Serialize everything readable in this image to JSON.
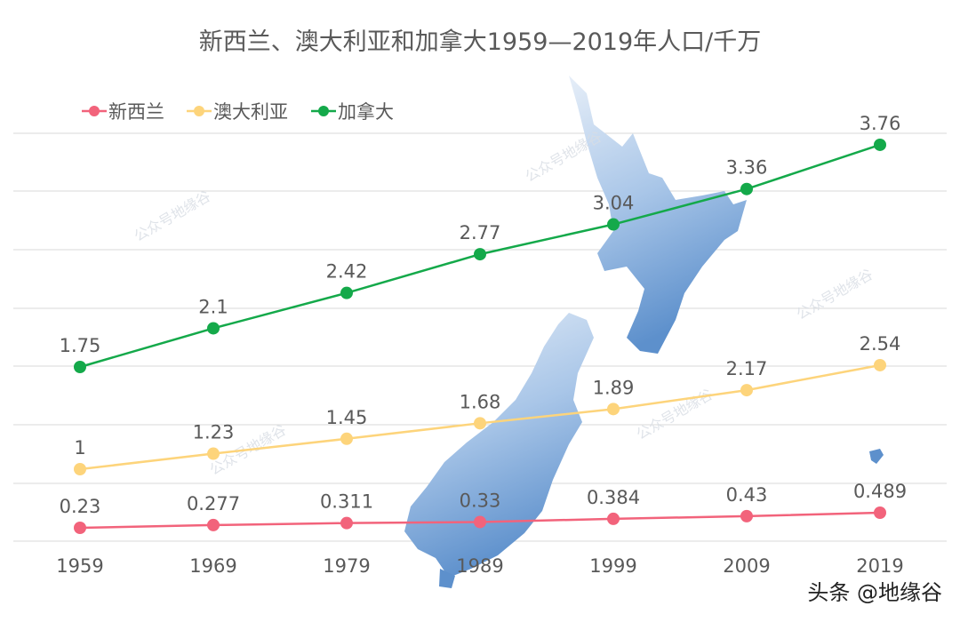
{
  "chart_data": {
    "type": "line",
    "title": "新西兰、澳大利亚和加拿大1959—2019年人口/千万",
    "categories": [
      "1959",
      "1969",
      "1979",
      "1989",
      "1999",
      "2009",
      "2019"
    ],
    "series": [
      {
        "name": "新西兰",
        "color": "#f2637b",
        "values": [
          0.23,
          0.277,
          0.311,
          0.33,
          0.384,
          0.43,
          0.489
        ]
      },
      {
        "name": "澳大利亚",
        "color": "#fdd47b",
        "values": [
          1,
          1.23,
          1.45,
          1.68,
          1.89,
          2.17,
          2.54
        ]
      },
      {
        "name": "加拿大",
        "color": "#14a94a",
        "values": [
          1.75,
          2.1,
          2.42,
          2.77,
          3.04,
          3.36,
          3.76
        ]
      }
    ],
    "legend_position": "top-left",
    "grid": true,
    "y_axis_labels_shown": false,
    "data_labels": true
  },
  "background_image": "new-zealand-map",
  "watermark": "公众号地缘谷",
  "footer": "头条 @地缘谷"
}
